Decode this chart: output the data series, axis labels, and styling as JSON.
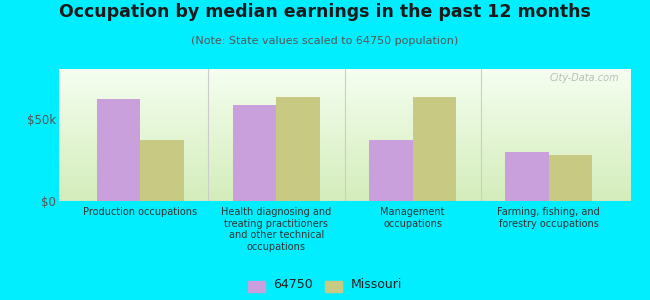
{
  "title": "Occupation by median earnings in the past 12 months",
  "subtitle": "(Note: State values scaled to 64750 population)",
  "background_outer": "#00eeff",
  "background_inner_top": "#e8f5e0",
  "background_inner_bottom": "#f8fff8",
  "categories": [
    "Production occupations",
    "Health diagnosing and\ntreating practitioners\nand other technical\noccupations",
    "Management\noccupations",
    "Farming, fishing, and\nforestry occupations"
  ],
  "values_64750": [
    62000,
    58000,
    37000,
    30000
  ],
  "values_missouri": [
    37000,
    63000,
    63000,
    28000
  ],
  "color_64750": "#c9a0dc",
  "color_missouri": "#c8ca84",
  "ylim": [
    0,
    80000
  ],
  "yticks": [
    0,
    50000
  ],
  "ytick_labels": [
    "$0",
    "$50k"
  ],
  "legend_64750": "64750",
  "legend_missouri": "Missouri",
  "bar_width": 0.32,
  "watermark": "City-Data.com"
}
